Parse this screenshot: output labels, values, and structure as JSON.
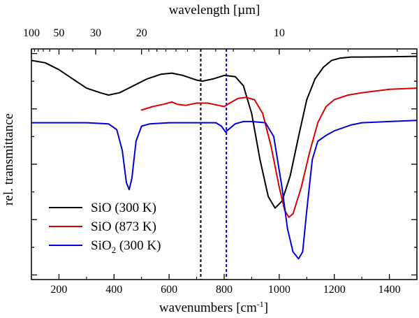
{
  "chart_data": {
    "type": "line",
    "title": "",
    "xlabel": "wavenumbers [cm",
    "xlabel_sup": "-1",
    "xlabel_tail": "]",
    "ylabel": "rel. transmittance",
    "top_axis_label": "wavelength [µm]",
    "xlim": [
      100,
      1500
    ],
    "ylim": [
      0,
      1
    ],
    "x_ticks": [
      200,
      400,
      600,
      800,
      1000,
      1200,
      1400
    ],
    "x_tick_labels": [
      "200",
      "400",
      "600",
      "800",
      "1000",
      "1200",
      "1400"
    ],
    "top_ticks": [
      {
        "wavelength": 100,
        "label": "100"
      },
      {
        "wavelength": 50,
        "label": "50"
      },
      {
        "wavelength": 30,
        "label": "30"
      },
      {
        "wavelength": 20,
        "label": "20"
      },
      {
        "wavelength": 10,
        "label": "10"
      }
    ],
    "top_minor_wavelengths": [
      90,
      80,
      70,
      60,
      40,
      25,
      19,
      18,
      17,
      16,
      15,
      14,
      13,
      12,
      11,
      9,
      8,
      7
    ],
    "y_ticks": [
      0.02,
      0.14,
      0.26,
      0.38,
      0.5,
      0.62,
      0.74,
      0.86,
      0.98
    ],
    "vertical_lines": [
      {
        "x": 715,
        "color": "#000000"
      },
      {
        "x": 808,
        "color": "#0000dd"
      }
    ],
    "legend_position": "bottom-left",
    "series": [
      {
        "name": "SiO (300 K)",
        "name_main": "SiO (300 K)",
        "name_sub": "",
        "name_tail": "",
        "color": "#000000",
        "x": [
          100,
          150,
          200,
          250,
          300,
          350,
          380,
          420,
          470,
          520,
          570,
          610,
          650,
          700,
          720,
          760,
          800,
          840,
          870,
          900,
          930,
          960,
          985,
          1010,
          1040,
          1070,
          1100,
          1130,
          1160,
          1190,
          1220,
          1260,
          1300,
          1400,
          1500
        ],
        "y": [
          0.95,
          0.94,
          0.91,
          0.87,
          0.83,
          0.81,
          0.8,
          0.81,
          0.84,
          0.87,
          0.89,
          0.895,
          0.885,
          0.865,
          0.86,
          0.87,
          0.885,
          0.88,
          0.84,
          0.72,
          0.52,
          0.36,
          0.31,
          0.34,
          0.45,
          0.62,
          0.78,
          0.87,
          0.92,
          0.95,
          0.96,
          0.965,
          0.965,
          0.966,
          0.968
        ]
      },
      {
        "name": "SiO (873 K)",
        "name_main": "SiO (873 K)",
        "name_sub": "",
        "name_tail": "",
        "color": "#dd0000",
        "x": [
          500,
          540,
          580,
          610,
          630,
          660,
          700,
          740,
          780,
          800,
          820,
          850,
          880,
          910,
          940,
          970,
          1000,
          1020,
          1035,
          1050,
          1080,
          1110,
          1140,
          1170,
          1200,
          1250,
          1300,
          1400,
          1500
        ],
        "y": [
          0.735,
          0.75,
          0.76,
          0.77,
          0.76,
          0.755,
          0.765,
          0.765,
          0.755,
          0.75,
          0.765,
          0.785,
          0.79,
          0.78,
          0.72,
          0.58,
          0.4,
          0.3,
          0.27,
          0.285,
          0.4,
          0.55,
          0.68,
          0.75,
          0.78,
          0.8,
          0.81,
          0.825,
          0.83
        ]
      },
      {
        "name": "SiO2 (300 K)",
        "name_main": "SiO",
        "name_sub": "2",
        "name_tail": " (300 K)",
        "color": "#0000dd",
        "x": [
          100,
          200,
          300,
          380,
          410,
          430,
          445,
          455,
          465,
          480,
          500,
          530,
          600,
          700,
          770,
          790,
          805,
          820,
          840,
          870,
          900,
          950,
          980,
          1010,
          1030,
          1050,
          1070,
          1085,
          1100,
          1120,
          1140,
          1170,
          1200,
          1260,
          1300,
          1400,
          1500
        ],
        "y": [
          0.68,
          0.68,
          0.68,
          0.675,
          0.65,
          0.56,
          0.42,
          0.39,
          0.44,
          0.6,
          0.665,
          0.675,
          0.68,
          0.68,
          0.68,
          0.665,
          0.64,
          0.655,
          0.675,
          0.685,
          0.685,
          0.68,
          0.62,
          0.4,
          0.22,
          0.12,
          0.09,
          0.12,
          0.3,
          0.52,
          0.6,
          0.625,
          0.645,
          0.67,
          0.68,
          0.685,
          0.69
        ]
      }
    ]
  }
}
